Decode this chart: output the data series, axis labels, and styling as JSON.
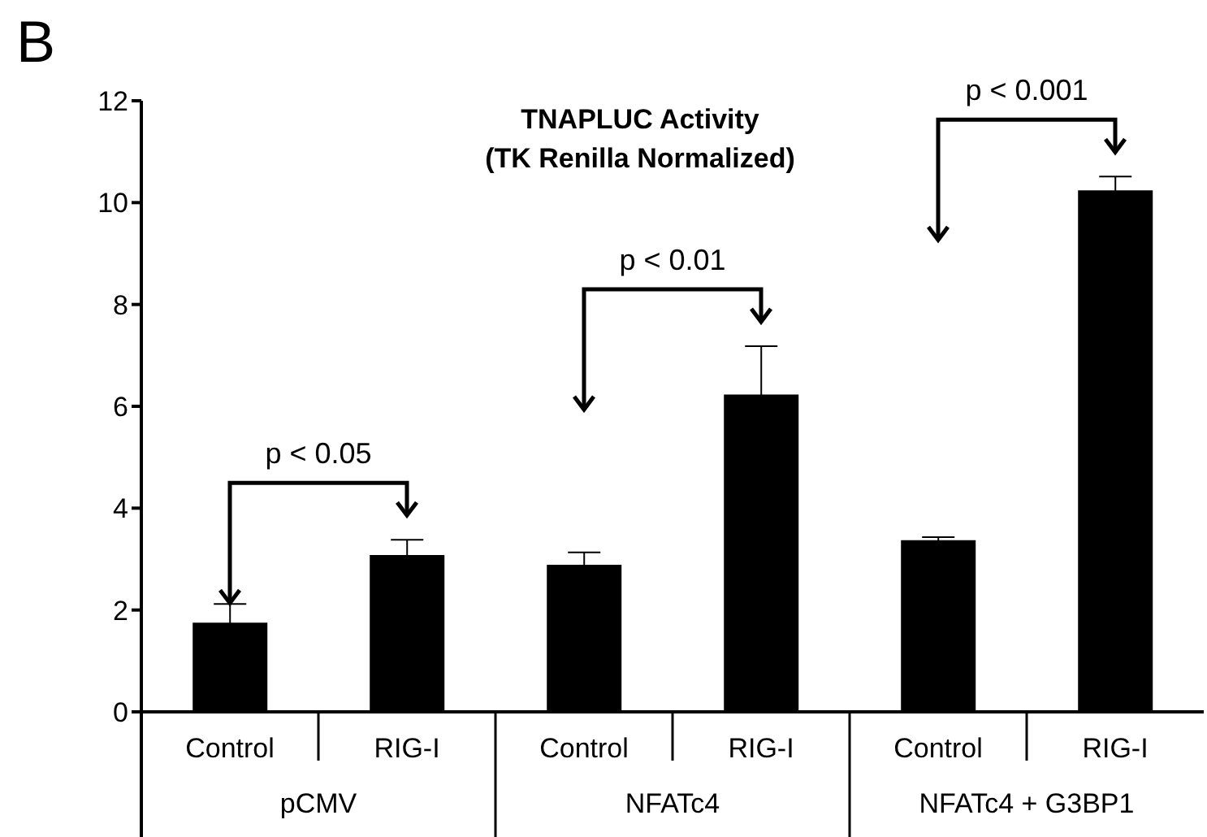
{
  "chart_data": {
    "type": "bar",
    "title": "TNAPLUC Activity",
    "subtitle": "(TK Renilla Normalized)",
    "categories": [
      "Control",
      "RIG-I",
      "Control",
      "RIG-I",
      "Control",
      "RIG-I"
    ],
    "values": [
      1.75,
      3.08,
      2.89,
      6.23,
      3.37,
      10.24
    ],
    "errors": [
      0.37,
      0.3,
      0.24,
      0.95,
      0.06,
      0.27
    ],
    "color": "#000000",
    "ylim": [
      0,
      12
    ],
    "yticks": [
      0,
      2,
      4,
      6,
      8,
      10,
      12
    ],
    "grid": false,
    "legend": false,
    "annotations": [
      "B",
      "p < 0.05",
      "p < 0.01",
      "p < 0.001",
      "pCMV",
      "NFATc4",
      "NFATc4 + G3BP1"
    ]
  }
}
